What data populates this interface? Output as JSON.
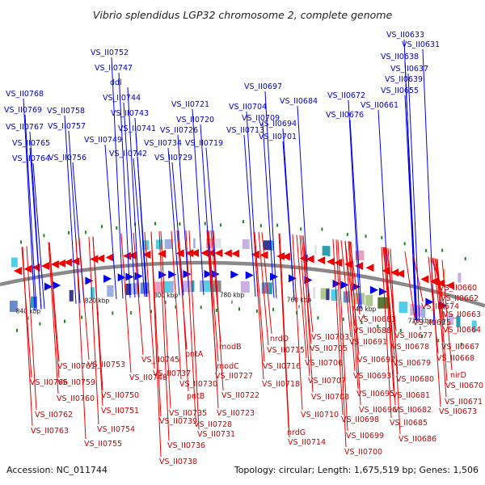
{
  "title": "Vibrio splendidus LGP32 chromosome 2, complete genome",
  "footer": {
    "accession": "Accession: NC_011744",
    "summary": "Topology: circular; Length: 1,675,519 bp; Genes: 1,506"
  },
  "colors": {
    "forward": "#0000ee",
    "reverse": "#ee0000",
    "backbone": "#888888",
    "marker": "#1a8a1a"
  },
  "ticks": [
    "720 kbp",
    "740 kbp",
    "760 kbp",
    "780 kbp",
    "800 kbp",
    "820 kbp",
    "840 kbp"
  ],
  "forward_genes": [
    "VS_II0633",
    "VS_II0631",
    "VS_II0638",
    "VS_II0637",
    "VS_II0639",
    "VS_II0655",
    "VS_II0661",
    "VS_II0672",
    "VS_II0676",
    "VS_II0684",
    "VS_II0697",
    "VS_II0694",
    "VS_II0704",
    "VS_II0709",
    "VS_II0701",
    "VS_II0713",
    "VS_II0721",
    "VS_II0720",
    "VS_II0726",
    "VS_II0719",
    "VS_II0734",
    "VS_II0729",
    "VS_II0752",
    "VS_II0747",
    "ddl",
    "VS_II0744",
    "VS_II0743",
    "VS_II0741",
    "VS_II0749",
    "VS_II0742",
    "VS_II0758",
    "VS_II0757",
    "VS_II0756",
    "VS_II0768",
    "VS_II0769",
    "VS_II0767",
    "VS_II0765",
    "VS_II0764"
  ],
  "reverse_genes": [
    "VS_II0660",
    "VS_II0662",
    "VS_II0663",
    "VS_II0664",
    "VS_II0667",
    "VS_II0668",
    "nirD",
    "VS_II0670",
    "VS_II0671",
    "VS_II0673",
    "VS_II0674",
    "VS_II0675",
    "VS_II0677",
    "VS_II0678",
    "VS_II0679",
    "VS_II0680",
    "VS_II0681",
    "VS_II0682",
    "VS_II0685",
    "VS_II0686",
    "VS_II0683",
    "VS_II0688",
    "VS_II0691",
    "VS_II0692",
    "VS_II0693",
    "VS_II0695",
    "VS_II0696",
    "VS_II0698",
    "VS_II0699",
    "VS_II0700",
    "VS_II0703",
    "VS_II0705",
    "VS_II0706",
    "VS_II0707",
    "VS_II0708",
    "VS_II0710",
    "nrdG",
    "VS_II0714",
    "nrdD",
    "VS_II0715",
    "VS_II0716",
    "VS_II0718",
    "modB",
    "modC",
    "VS_II0727",
    "VS_II0722",
    "VS_II0723",
    "pntA",
    "VS_II0730",
    "pntB",
    "VS_II0728",
    "VS_II0731",
    "VS_II0737",
    "VS_II0735",
    "VS_II0739",
    "VS_II0736",
    "VS_II0738",
    "VS_II0745",
    "VS_II0748",
    "VS_II0753",
    "VS_II0750",
    "VS_II0751",
    "VS_II0754",
    "VS_II0755",
    "VS_II0761",
    "VS_II0759",
    "VS_II0760",
    "VS_II0766",
    "VS_II0762",
    "VS_II0763"
  ]
}
